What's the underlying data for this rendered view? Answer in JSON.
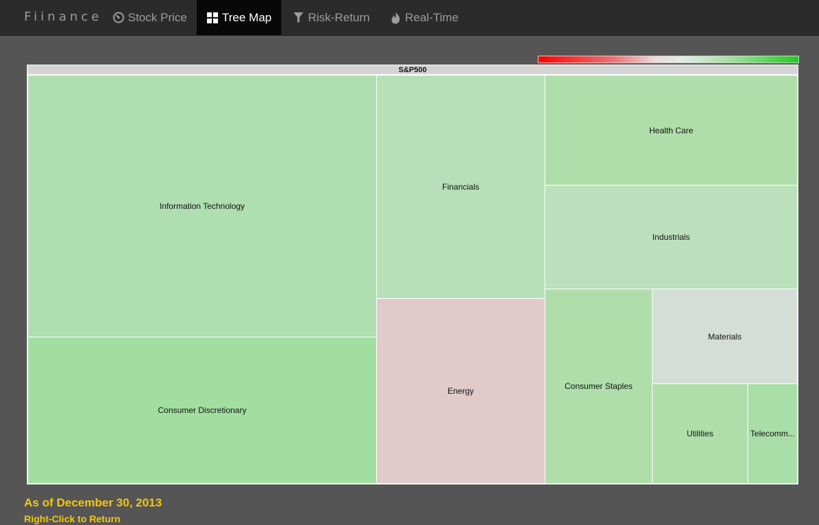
{
  "navbar": {
    "brand": "Fiinance",
    "items": [
      {
        "label": "Stock Price",
        "icon": "dashboard-icon",
        "active": false
      },
      {
        "label": "Tree Map",
        "icon": "grid-icon",
        "active": true
      },
      {
        "label": "Risk-Return",
        "icon": "filter-icon",
        "active": false
      },
      {
        "label": "Real-Time",
        "icon": "fire-icon",
        "active": false
      }
    ]
  },
  "legend": {
    "scale_colors": [
      "#ff0000",
      "#eedada",
      "#1fcc1f"
    ]
  },
  "treemap": {
    "root_label": "S&P500",
    "sectors": [
      {
        "name": "Information Technology",
        "color": "#afdeb0"
      },
      {
        "name": "Consumer Discretionary",
        "color": "#a2dea0"
      },
      {
        "name": "Financials",
        "color": "#b8e0b8"
      },
      {
        "name": "Energy",
        "color": "#e0caca"
      },
      {
        "name": "Health Care",
        "color": "#afdeab"
      },
      {
        "name": "Industrials",
        "color": "#bce0bb"
      },
      {
        "name": "Consumer Staples",
        "color": "#afdeab"
      },
      {
        "name": "Materials",
        "color": "#d4ded6"
      },
      {
        "name": "Utilities",
        "color": "#afdeab"
      },
      {
        "name": "Telecomm...",
        "color": "#aadea8"
      }
    ]
  },
  "footer": {
    "date": "As of December 30, 2013",
    "hint": "Right-Click to Return"
  }
}
